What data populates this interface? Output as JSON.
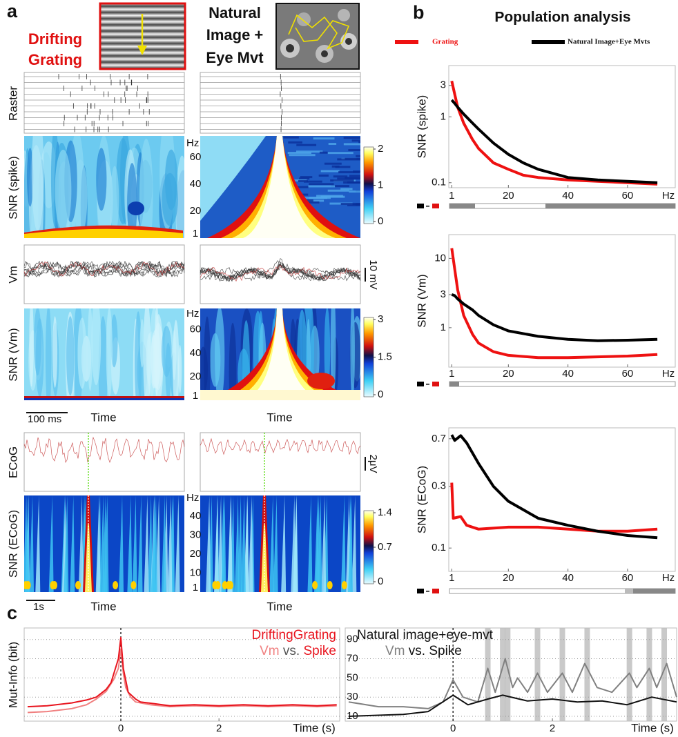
{
  "panel_a": {
    "label": "a",
    "stimuli": [
      [
        "Drifting",
        "Grating"
      ],
      [
        "Natural",
        "Image +",
        "Eye Mvt"
      ]
    ],
    "row_labels": [
      "Raster",
      "SNR (spike)",
      "Vm",
      "SNR (Vm)",
      "ECoG",
      "SNR (ECoG)"
    ],
    "x_label": "Time",
    "freq_unit": "Hz",
    "freq_axes": [
      [
        60,
        40,
        20,
        1
      ],
      [
        60,
        40,
        20,
        1
      ],
      [
        40,
        30,
        20,
        10,
        1
      ]
    ],
    "colorbars": [
      [
        0,
        1,
        2
      ],
      [
        0,
        1.5,
        3
      ],
      [
        0,
        0.7,
        1.4
      ]
    ],
    "scale_bars": {
      "time_vm": "100 ms",
      "time_ecog": "1s",
      "vm": "10 mV",
      "ecog": "2μV"
    }
  },
  "panel_b": {
    "label": "b",
    "title": "Population analysis",
    "x_unit": "Hz"
  },
  "panel_c": {
    "label": "c",
    "y_label": "Mut-Info (bit)",
    "x_label": "Time (s)",
    "vs": "vs.",
    "annotations": [
      "DriftingGrating",
      "Natural image+eye-mvt"
    ]
  },
  "chart_data": [
    {
      "type": "line",
      "y_label": "SNR (spike)",
      "log_y": true,
      "xlim": [
        0,
        76
      ],
      "xticks": [
        1,
        20,
        40,
        60
      ],
      "ylim": [
        0.084,
        6
      ],
      "yticks": [
        0.1,
        1,
        3
      ],
      "series": [
        {
          "name": "Grating",
          "color": "#ee1111",
          "x": [
            1,
            2,
            3,
            5,
            8,
            10,
            15,
            20,
            25,
            30,
            40,
            50,
            60,
            70
          ],
          "values": [
            3.5,
            2.2,
            1.4,
            0.8,
            0.45,
            0.33,
            0.2,
            0.16,
            0.13,
            0.12,
            0.11,
            0.105,
            0.1,
            0.095
          ]
        },
        {
          "name": "Natural Image+Eye Mvts",
          "color": "#000000",
          "x": [
            1,
            2,
            3,
            5,
            8,
            10,
            15,
            20,
            25,
            30,
            40,
            50,
            60,
            70
          ],
          "values": [
            1.8,
            1.6,
            1.4,
            1.1,
            0.8,
            0.65,
            0.4,
            0.27,
            0.2,
            0.16,
            0.12,
            0.11,
            0.105,
            0.1
          ]
        }
      ]
    },
    {
      "type": "line",
      "y_label": "SNR (Vm)",
      "log_y": true,
      "xlim": [
        0,
        76
      ],
      "xticks": [
        1,
        20,
        40,
        60
      ],
      "ylim": [
        0.27,
        22
      ],
      "yticks": [
        1,
        3,
        10
      ],
      "series": [
        {
          "color": "#ee1111",
          "x": [
            1,
            2,
            3,
            5,
            8,
            10,
            15,
            20,
            30,
            40,
            50,
            60,
            70
          ],
          "values": [
            14,
            7,
            3.5,
            1.5,
            0.8,
            0.6,
            0.45,
            0.4,
            0.37,
            0.37,
            0.38,
            0.39,
            0.41
          ]
        },
        {
          "color": "#000000",
          "x": [
            1,
            2,
            3,
            5,
            8,
            10,
            15,
            20,
            30,
            40,
            50,
            60,
            70
          ],
          "values": [
            3,
            2.9,
            2.6,
            2.2,
            1.8,
            1.5,
            1.1,
            0.9,
            0.75,
            0.68,
            0.65,
            0.66,
            0.68
          ]
        }
      ]
    },
    {
      "type": "line",
      "y_label": "SNR (ECoG)",
      "log_y": true,
      "xlim": [
        0,
        76
      ],
      "xticks": [
        1,
        20,
        40,
        60
      ],
      "ylim": [
        0.066,
        0.85
      ],
      "yticks": [
        0.1,
        0.3,
        0.7
      ],
      "series": [
        {
          "color": "#ee1111",
          "x": [
            1,
            1.5,
            4,
            6,
            10,
            20,
            30,
            40,
            50,
            60,
            70
          ],
          "values": [
            0.32,
            0.17,
            0.175,
            0.15,
            0.14,
            0.145,
            0.145,
            0.14,
            0.135,
            0.135,
            0.14
          ]
        },
        {
          "color": "#000000",
          "x": [
            1,
            2,
            4,
            6,
            10,
            15,
            20,
            30,
            40,
            50,
            60,
            70
          ],
          "values": [
            0.75,
            0.68,
            0.74,
            0.65,
            0.45,
            0.3,
            0.23,
            0.17,
            0.15,
            0.135,
            0.125,
            0.12
          ]
        }
      ]
    },
    {
      "type": "line",
      "xlim": [
        -1.97,
        4.46
      ],
      "xticks": [
        0,
        2
      ],
      "ylim": [
        5,
        102
      ],
      "yticks": [
        10,
        30,
        50,
        70,
        90
      ],
      "ytick_labels": false,
      "grid": true,
      "series": [
        {
          "name": "Vm",
          "color": "#f08080",
          "x": [
            -1.9,
            -1.5,
            -1.0,
            -0.7,
            -0.5,
            -0.3,
            -0.15,
            -0.05,
            0,
            0.05,
            0.1,
            0.2,
            0.3,
            0.6,
            1.0,
            1.5,
            2.0,
            2.5,
            3.0,
            3.5,
            4.0,
            4.4
          ],
          "values": [
            14,
            15,
            18,
            22,
            28,
            36,
            48,
            60,
            80,
            55,
            40,
            30,
            25,
            22,
            20,
            21,
            20,
            21,
            20,
            21,
            20,
            21
          ]
        },
        {
          "name": "Spike",
          "color": "#e8141e",
          "x": [
            -1.9,
            -1.5,
            -1.0,
            -0.7,
            -0.5,
            -0.3,
            -0.2,
            -0.05,
            0,
            0.05,
            0.15,
            0.3,
            0.4,
            0.7,
            1.0,
            1.5,
            2.0,
            2.5,
            3.0,
            3.5,
            4.0,
            4.4
          ],
          "values": [
            20,
            21,
            24,
            27,
            30,
            38,
            45,
            70,
            92,
            60,
            35,
            28,
            25,
            23,
            21,
            22,
            21,
            22,
            21,
            22,
            21,
            22
          ]
        }
      ]
    },
    {
      "type": "line",
      "xlim": [
        -2.17,
        4.5
      ],
      "xticks": [
        0,
        2
      ],
      "ylim": [
        5,
        102
      ],
      "yticks": [
        10,
        30,
        50,
        70,
        90
      ],
      "ytick_labels": true,
      "grid": true,
      "shaded_x": [
        0.7,
        1.0,
        1.1,
        1.7,
        2.2,
        2.7,
        3.55,
        3.95,
        4.25
      ],
      "series": [
        {
          "name": "Vm",
          "color": "#808080",
          "x": [
            -2.1,
            -1.5,
            -1.0,
            -0.5,
            -0.2,
            0,
            0.2,
            0.5,
            0.7,
            0.85,
            1.05,
            1.2,
            1.3,
            1.5,
            1.7,
            1.9,
            2.2,
            2.4,
            2.65,
            2.9,
            3.2,
            3.55,
            3.7,
            3.95,
            4.1,
            4.3,
            4.5
          ],
          "values": [
            25,
            20,
            20,
            18,
            25,
            48,
            30,
            25,
            60,
            35,
            70,
            40,
            50,
            35,
            55,
            35,
            55,
            35,
            65,
            40,
            35,
            55,
            40,
            60,
            40,
            65,
            30
          ]
        },
        {
          "name": "Spike",
          "color": "#111111",
          "x": [
            -2.1,
            -1.0,
            -0.5,
            0,
            0.3,
            0.7,
            1.0,
            1.5,
            2.0,
            2.5,
            3.0,
            3.5,
            4.0,
            4.5
          ],
          "values": [
            10,
            12,
            15,
            32,
            22,
            28,
            32,
            26,
            28,
            25,
            26,
            22,
            30,
            25
          ]
        }
      ]
    }
  ]
}
